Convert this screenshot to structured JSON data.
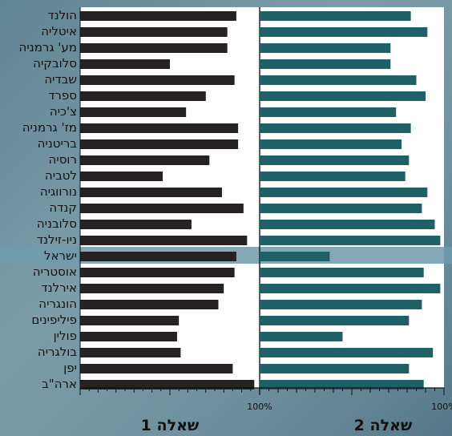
{
  "chart_data": {
    "type": "bar",
    "orientation": "horizontal",
    "direction": "rtl",
    "categories": [
      "הולנד",
      "איטליה",
      "מע' גרמניה",
      "סלובקיה",
      "שבדיה",
      "ספרד",
      "צ'כיה",
      "מז' גרמניה",
      "בריטניה",
      "רוסיה",
      "לטביה",
      "נורווגיה",
      "קנדה",
      "סלובניה",
      "ניו-זילנד",
      "ישראל",
      "אוסטריה",
      "אירלנד",
      "הונגריה",
      "פיליפינים",
      "פולין",
      "בולגריה",
      "יפן",
      "ארה\"ב"
    ],
    "highlight_category": "ישראל",
    "xlim": [
      0,
      100
    ],
    "panels": [
      {
        "title": "שאלה 1",
        "tick_label": "100%",
        "bar_color": "#262122",
        "values": [
          87,
          82,
          82,
          50,
          86,
          70,
          59,
          88,
          88,
          72,
          46,
          79,
          91,
          62,
          93,
          87,
          86,
          80,
          77,
          55,
          54,
          56,
          85,
          97
        ]
      },
      {
        "title": "שאלה 2",
        "tick_label": "100%",
        "bar_color": "#1f5f66",
        "values": [
          82,
          91,
          71,
          71,
          85,
          90,
          74,
          82,
          77,
          81,
          79,
          91,
          88,
          95,
          98,
          38,
          89,
          98,
          88,
          81,
          45,
          94,
          81,
          89
        ]
      }
    ]
  }
}
